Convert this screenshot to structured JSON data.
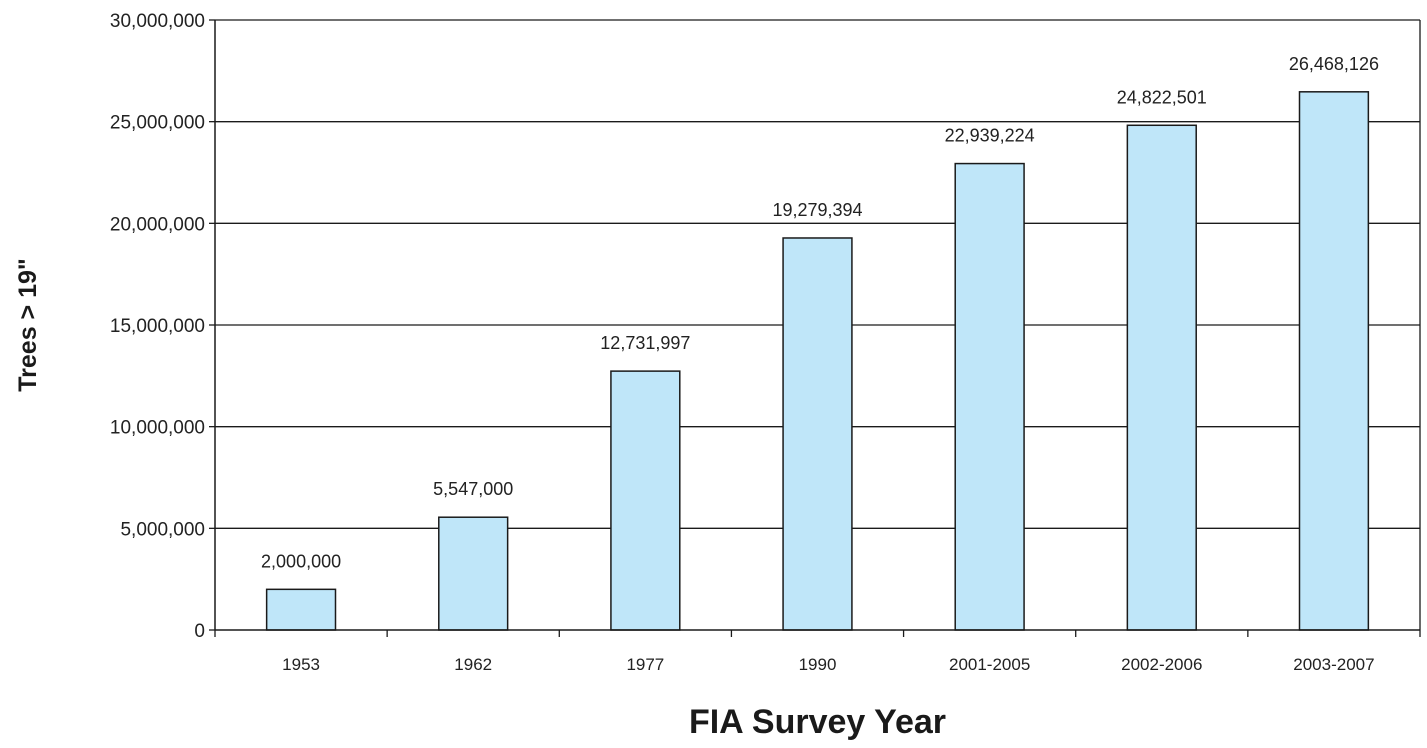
{
  "chart_data": {
    "type": "bar",
    "categories": [
      "1953",
      "1962",
      "1977",
      "1990",
      "2001-2005",
      "2002-2006",
      "2003-2007"
    ],
    "values": [
      2000000,
      5547000,
      12731997,
      19279394,
      22939224,
      24822501,
      26468126
    ],
    "data_labels": [
      "2,000,000",
      "5,547,000",
      "12,731,997",
      "19,279,394",
      "22,939,224",
      "24,822,501",
      "26,468,126"
    ],
    "xlabel": "FIA Survey Year",
    "ylabel": "Trees > 19\"",
    "ylim": [
      0,
      30000000
    ],
    "yticks": [
      0,
      5000000,
      10000000,
      15000000,
      20000000,
      25000000,
      30000000
    ],
    "ytick_labels": [
      "0",
      "5,000,000",
      "10,000,000",
      "15,000,000",
      "20,000,000",
      "25,000,000",
      "30,000,000"
    ],
    "grid": true,
    "legend": "none",
    "bar_color": "#bfe6f9",
    "bar_edge_color": "#1a1a1a"
  }
}
